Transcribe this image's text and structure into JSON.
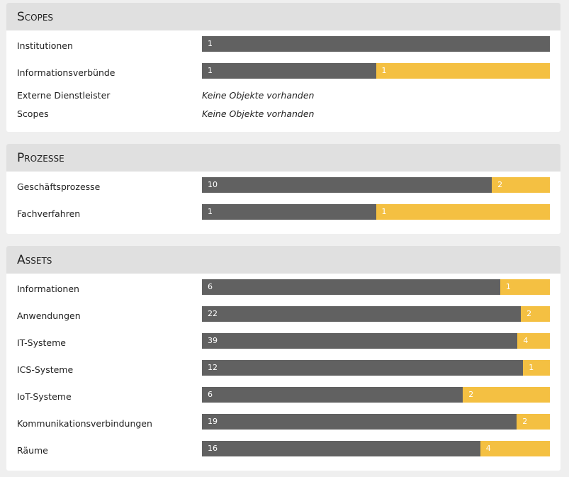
{
  "sections": [
    {
      "title": "Scopes",
      "rows": [
        {
          "label": "Institutionen",
          "values": [
            1
          ]
        },
        {
          "label": "Informationsverbünde",
          "values": [
            1,
            1
          ]
        },
        {
          "label": "Externe Dienstleister",
          "note": "Keine Objekte vorhanden"
        },
        {
          "label": "Scopes",
          "note": "Keine Objekte vorhanden"
        }
      ]
    },
    {
      "title": "Prozesse",
      "rows": [
        {
          "label": "Geschäftsprozesse",
          "values": [
            10,
            2
          ]
        },
        {
          "label": "Fachverfahren",
          "values": [
            1,
            1
          ]
        }
      ]
    },
    {
      "title": "Assets",
      "rows": [
        {
          "label": "Informationen",
          "values": [
            6,
            1
          ]
        },
        {
          "label": "Anwendungen",
          "values": [
            22,
            2
          ]
        },
        {
          "label": "IT-Systeme",
          "values": [
            39,
            4
          ]
        },
        {
          "label": "ICS-Systeme",
          "values": [
            12,
            1
          ]
        },
        {
          "label": "IoT-Systeme",
          "values": [
            6,
            2
          ]
        },
        {
          "label": "Kommunikationsverbindungen",
          "values": [
            19,
            2
          ]
        },
        {
          "label": "Räume",
          "values": [
            16,
            4
          ]
        }
      ]
    }
  ],
  "colors": [
    "#616161",
    "#f4c042"
  ]
}
